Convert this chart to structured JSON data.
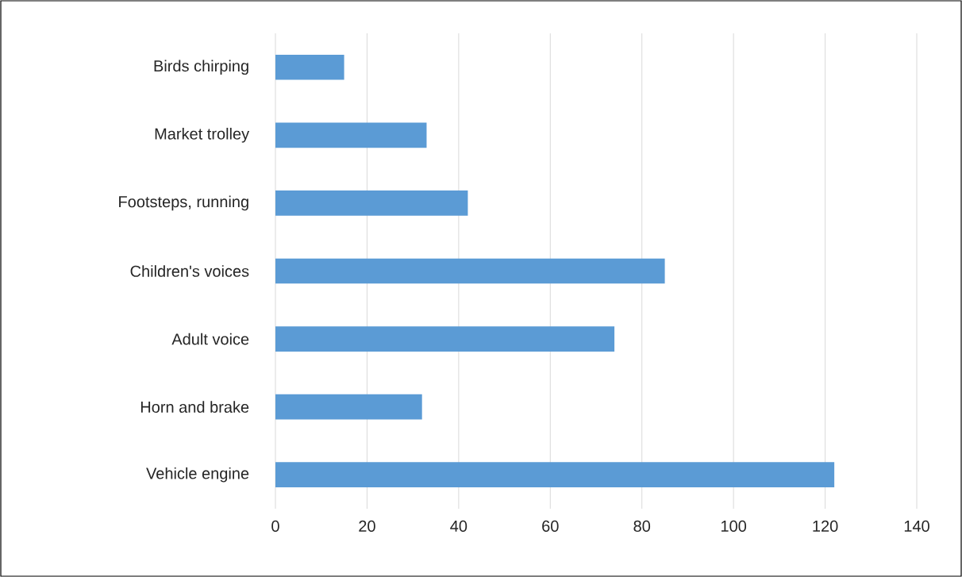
{
  "chart_data": {
    "type": "bar",
    "orientation": "horizontal",
    "categories": [
      "Birds chirping",
      "Market trolley",
      "Footsteps, running",
      "Children's voices",
      "Adult voice",
      "Horn and brake",
      "Vehicle engine"
    ],
    "values": [
      15,
      33,
      42,
      85,
      74,
      32,
      122
    ],
    "color": "#5b9bd5",
    "xlim": [
      0,
      140
    ],
    "xticks": [
      0,
      20,
      40,
      60,
      80,
      100,
      120,
      140
    ],
    "grid": "x"
  }
}
